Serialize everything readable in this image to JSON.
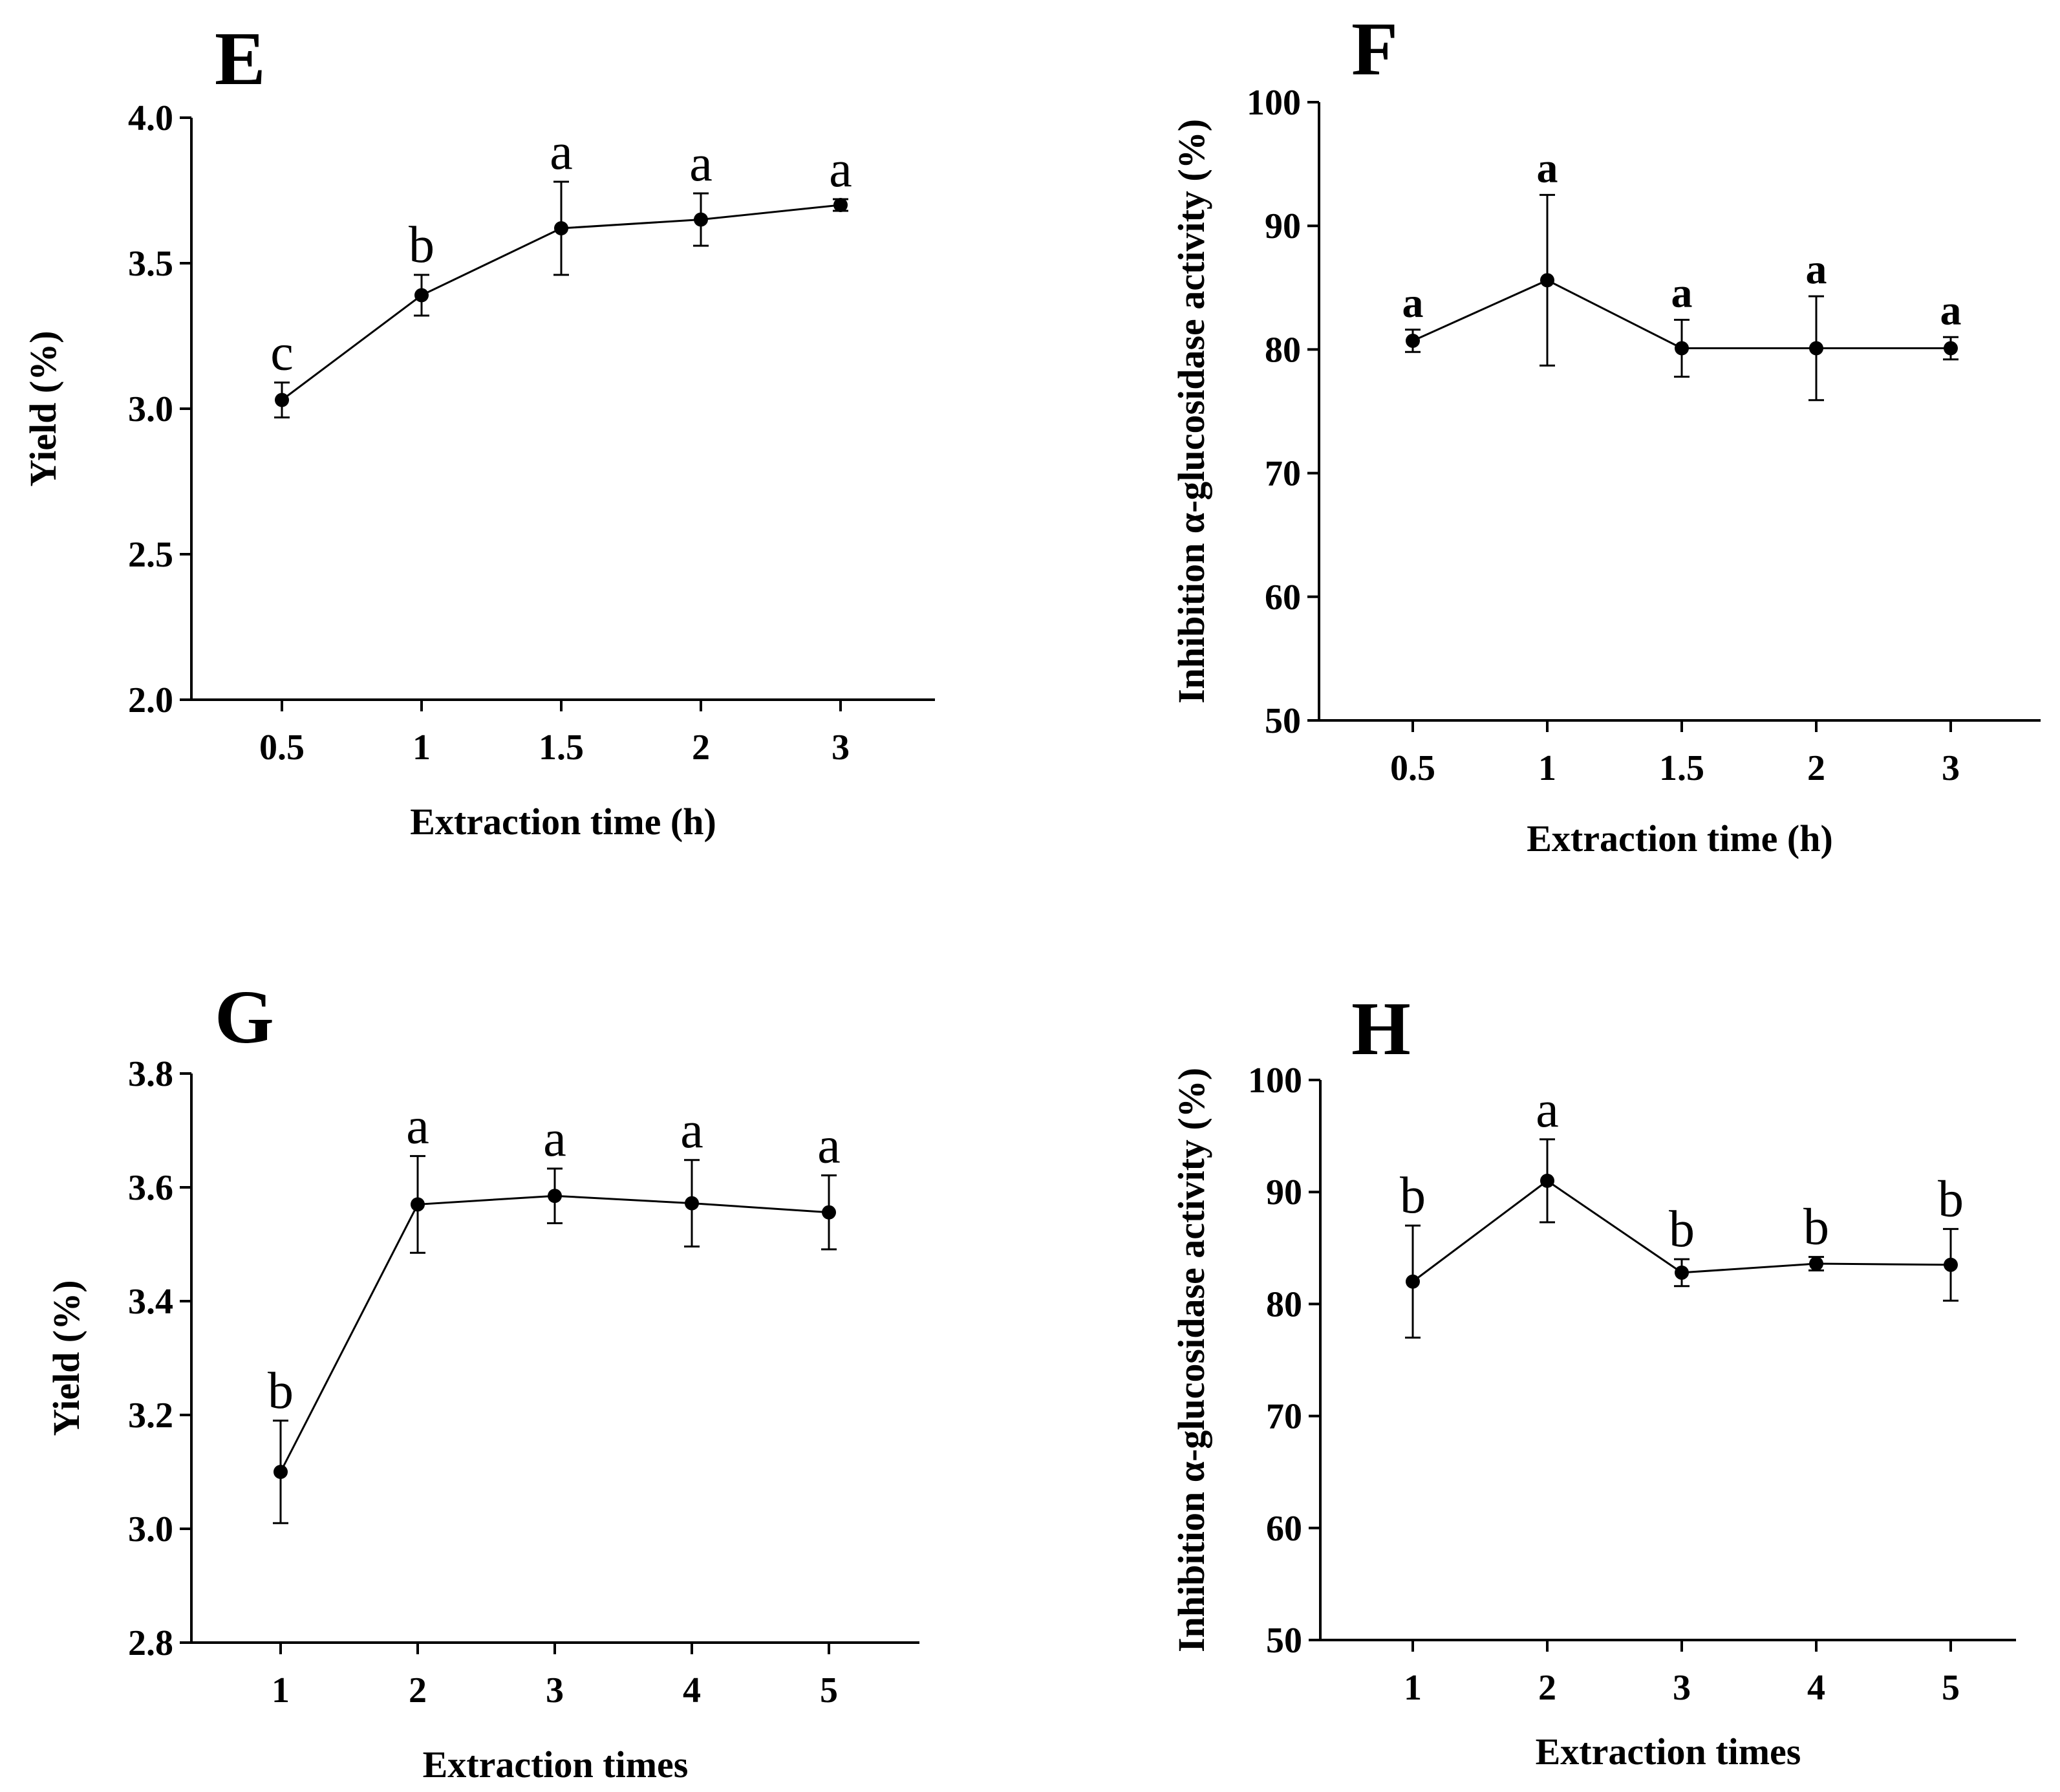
{
  "chart_data": [
    {
      "id": "E",
      "type": "line",
      "title": "E",
      "xlabel": "Extraction time (h)",
      "ylabel": "Yield (%)",
      "categories": [
        "0.5",
        "1",
        "1.5",
        "2",
        "3"
      ],
      "ylim": [
        2.0,
        4.0
      ],
      "yticks": [
        "2.0",
        "2.5",
        "3.0",
        "3.5",
        "4.0"
      ],
      "series": [
        {
          "values": [
            3.03,
            3.39,
            3.62,
            3.65,
            3.7
          ],
          "errors": [
            0.06,
            0.07,
            0.16,
            0.09,
            0.02
          ],
          "significance": [
            "c",
            "b",
            "a",
            "a",
            "a"
          ]
        }
      ],
      "significance_bold": false,
      "grid": false
    },
    {
      "id": "F",
      "type": "line",
      "title": "F",
      "xlabel": "Extraction time (h)",
      "ylabel": "Inhibition α-glucosidase activity (%)",
      "categories": [
        "0.5",
        "1",
        "1.5",
        "2",
        "3"
      ],
      "ylim": [
        50,
        100
      ],
      "yticks": [
        "50",
        "60",
        "70",
        "80",
        "90",
        "100"
      ],
      "series": [
        {
          "values": [
            80.7,
            85.6,
            80.1,
            80.1,
            80.1
          ],
          "errors": [
            0.9,
            6.9,
            2.3,
            4.2,
            0.9
          ],
          "significance": [
            "a",
            "a",
            "a",
            "a",
            "a"
          ]
        }
      ],
      "significance_bold": true,
      "grid": false
    },
    {
      "id": "G",
      "type": "line",
      "title": "G",
      "xlabel": "Extraction times",
      "ylabel": "Yield (%)",
      "categories": [
        "1",
        "2",
        "3",
        "4",
        "5"
      ],
      "ylim": [
        2.8,
        3.8
      ],
      "yticks": [
        "2.8",
        "3.0",
        "3.2",
        "3.4",
        "3.6",
        "3.8"
      ],
      "series": [
        {
          "values": [
            3.1,
            3.57,
            3.585,
            3.572,
            3.556
          ],
          "errors": [
            0.09,
            0.085,
            0.048,
            0.076,
            0.065
          ],
          "significance": [
            "b",
            "a",
            "a",
            "a",
            "a"
          ]
        }
      ],
      "significance_bold": false,
      "grid": false
    },
    {
      "id": "H",
      "type": "line",
      "title": "H",
      "xlabel": "Extraction times",
      "ylabel": "Inhibition α-glucosidase activity (%)",
      "categories": [
        "1",
        "2",
        "3",
        "4",
        "5"
      ],
      "ylim": [
        50,
        100
      ],
      "yticks": [
        "50",
        "60",
        "70",
        "80",
        "90",
        "100"
      ],
      "series": [
        {
          "values": [
            82.0,
            91.0,
            82.8,
            83.6,
            83.5
          ],
          "errors": [
            5.0,
            3.7,
            1.2,
            0.6,
            3.2
          ],
          "significance": [
            "b",
            "a",
            "b",
            "b",
            "b"
          ]
        }
      ],
      "significance_bold": false,
      "grid": false
    }
  ]
}
